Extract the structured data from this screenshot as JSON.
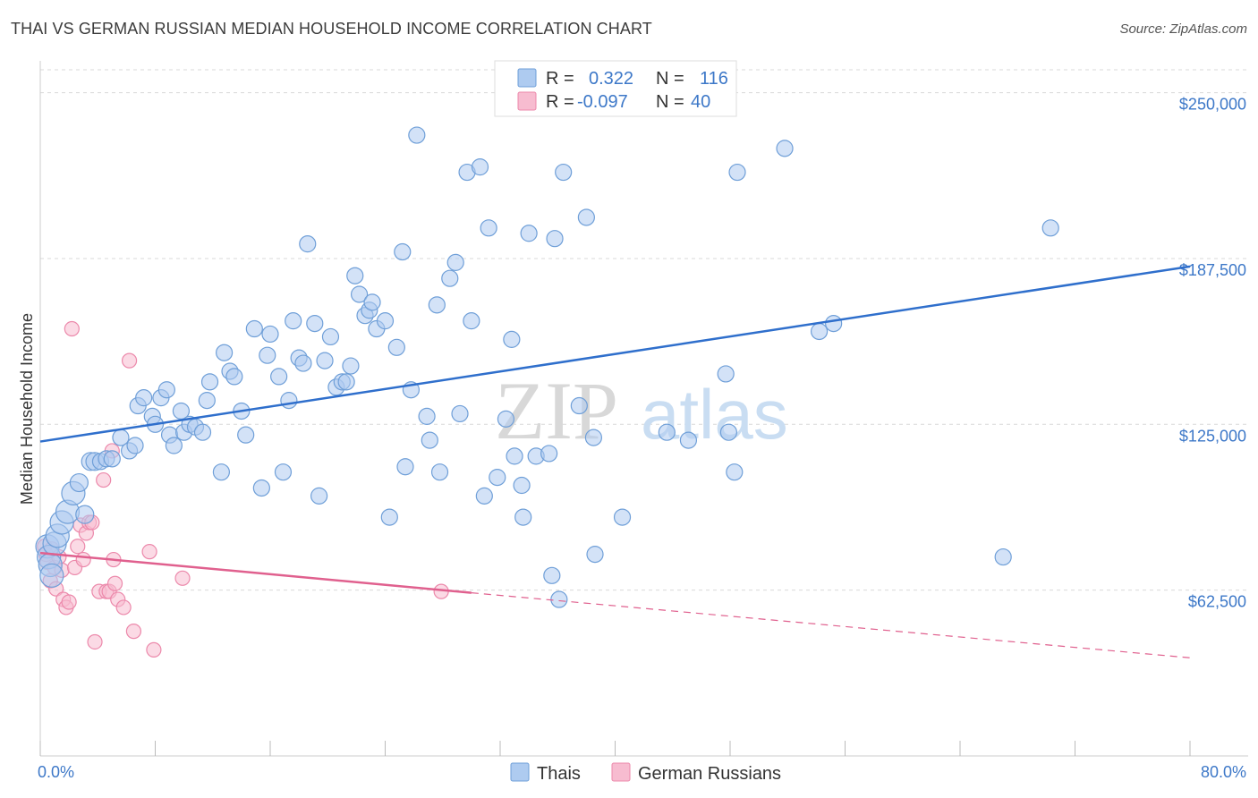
{
  "header": {
    "title": "THAI VS GERMAN RUSSIAN MEDIAN HOUSEHOLD INCOME CORRELATION CHART",
    "source": "Source: ZipAtlas.com"
  },
  "watermark": {
    "zip": "ZIP",
    "atlas": "atlas"
  },
  "legend": {
    "rows": [
      {
        "r_label": "R =",
        "r_value": "0.322",
        "n_label": "N =",
        "n_value": "116",
        "color": "#7fb0e8"
      },
      {
        "r_label": "R =",
        "r_value": "-0.097",
        "n_label": "N =",
        "n_value": "40",
        "color": "#f29bb9"
      }
    ]
  },
  "bottom_legend": {
    "items": [
      "Thais",
      "German Russians"
    ]
  },
  "colors": {
    "thai_fill": "#aecbf0",
    "thai_stroke": "#6f9fd8",
    "thai_line": "#2f6fcc",
    "gr_fill": "#f7bcd0",
    "gr_stroke": "#ec89ab",
    "gr_line": "#e0608e",
    "grid": "#d9d9d9",
    "axis_text": "#3d78c8"
  },
  "chart_data": {
    "type": "scatter",
    "title": "THAI VS GERMAN RUSSIAN MEDIAN HOUSEHOLD INCOME CORRELATION CHART",
    "xlabel": "",
    "ylabel": "Median Household Income",
    "xlim": [
      0,
      80
    ],
    "ylim": [
      0,
      262000
    ],
    "x_tick_labels": [
      "0.0%",
      "80.0%"
    ],
    "y_ticks": [
      62500,
      125000,
      187500,
      250000
    ],
    "y_tick_labels": [
      "$62,500",
      "$125,000",
      "$187,500",
      "$250,000"
    ],
    "grid": true,
    "legend_position": "top-center",
    "series": [
      {
        "name": "Thais",
        "points": [
          [
            0.5,
            79000
          ],
          [
            0.6,
            75000
          ],
          [
            0.7,
            72000
          ],
          [
            0.8,
            68000
          ],
          [
            1.0,
            80000
          ],
          [
            1.2,
            83000
          ],
          [
            1.5,
            88000
          ],
          [
            1.9,
            92000
          ],
          [
            2.3,
            99000
          ],
          [
            2.7,
            103000
          ],
          [
            3.1,
            91000
          ],
          [
            3.5,
            111000
          ],
          [
            3.8,
            111000
          ],
          [
            4.2,
            111000
          ],
          [
            4.6,
            112000
          ],
          [
            5.0,
            112000
          ],
          [
            5.6,
            120000
          ],
          [
            6.2,
            115000
          ],
          [
            6.6,
            117000
          ],
          [
            6.8,
            132000
          ],
          [
            7.2,
            135000
          ],
          [
            7.8,
            128000
          ],
          [
            8.0,
            125000
          ],
          [
            8.4,
            135000
          ],
          [
            8.8,
            138000
          ],
          [
            9.0,
            121000
          ],
          [
            9.3,
            117000
          ],
          [
            9.8,
            130000
          ],
          [
            10.0,
            122000
          ],
          [
            10.4,
            125000
          ],
          [
            10.8,
            124000
          ],
          [
            11.3,
            122000
          ],
          [
            11.6,
            134000
          ],
          [
            11.8,
            141000
          ],
          [
            12.6,
            107000
          ],
          [
            12.8,
            152000
          ],
          [
            13.2,
            145000
          ],
          [
            13.5,
            143000
          ],
          [
            14.0,
            130000
          ],
          [
            14.3,
            121000
          ],
          [
            14.9,
            161000
          ],
          [
            15.4,
            101000
          ],
          [
            15.8,
            151000
          ],
          [
            16.0,
            159000
          ],
          [
            16.6,
            143000
          ],
          [
            16.9,
            107000
          ],
          [
            17.3,
            134000
          ],
          [
            17.6,
            164000
          ],
          [
            18.0,
            150000
          ],
          [
            18.3,
            148000
          ],
          [
            18.6,
            193000
          ],
          [
            19.1,
            163000
          ],
          [
            19.4,
            98000
          ],
          [
            19.8,
            149000
          ],
          [
            20.2,
            158000
          ],
          [
            20.6,
            139000
          ],
          [
            21.0,
            141000
          ],
          [
            21.3,
            141000
          ],
          [
            21.6,
            147000
          ],
          [
            21.9,
            181000
          ],
          [
            22.2,
            174000
          ],
          [
            22.6,
            166000
          ],
          [
            22.9,
            168000
          ],
          [
            23.1,
            171000
          ],
          [
            23.4,
            161000
          ],
          [
            24.0,
            164000
          ],
          [
            24.3,
            90000
          ],
          [
            24.8,
            154000
          ],
          [
            25.2,
            190000
          ],
          [
            25.4,
            109000
          ],
          [
            25.8,
            138000
          ],
          [
            26.2,
            234000
          ],
          [
            26.9,
            128000
          ],
          [
            27.1,
            119000
          ],
          [
            27.6,
            170000
          ],
          [
            27.8,
            107000
          ],
          [
            28.5,
            180000
          ],
          [
            28.9,
            186000
          ],
          [
            29.2,
            129000
          ],
          [
            29.7,
            220000
          ],
          [
            30.0,
            164000
          ],
          [
            30.6,
            222000
          ],
          [
            30.9,
            98000
          ],
          [
            31.2,
            199000
          ],
          [
            31.8,
            105000
          ],
          [
            32.4,
            127000
          ],
          [
            32.8,
            157000
          ],
          [
            33.0,
            113000
          ],
          [
            33.5,
            102000
          ],
          [
            33.6,
            90000
          ],
          [
            34.0,
            197000
          ],
          [
            34.5,
            113000
          ],
          [
            35.4,
            114000
          ],
          [
            35.6,
            68000
          ],
          [
            35.8,
            195000
          ],
          [
            36.1,
            59000
          ],
          [
            36.4,
            220000
          ],
          [
            37.5,
            132000
          ],
          [
            38.0,
            203000
          ],
          [
            38.5,
            120000
          ],
          [
            38.6,
            76000
          ],
          [
            40.5,
            90000
          ],
          [
            43.6,
            122000
          ],
          [
            45.1,
            119000
          ],
          [
            47.7,
            144000
          ],
          [
            47.9,
            122000
          ],
          [
            48.3,
            107000
          ],
          [
            48.5,
            220000
          ],
          [
            51.8,
            229000
          ],
          [
            54.2,
            160000
          ],
          [
            55.2,
            163000
          ],
          [
            67.0,
            75000
          ],
          [
            70.3,
            199000
          ]
        ]
      },
      {
        "name": "German Russians",
        "points": [
          [
            0.3,
            79000
          ],
          [
            0.4,
            76000
          ],
          [
            0.5,
            73000
          ],
          [
            0.7,
            66000
          ],
          [
            0.8,
            78000
          ],
          [
            1.0,
            71000
          ],
          [
            1.1,
            63000
          ],
          [
            1.3,
            75000
          ],
          [
            1.5,
            70000
          ],
          [
            1.6,
            59000
          ],
          [
            1.8,
            56000
          ],
          [
            2.0,
            58000
          ],
          [
            2.2,
            161000
          ],
          [
            2.4,
            71000
          ],
          [
            2.6,
            79000
          ],
          [
            2.8,
            87000
          ],
          [
            3.0,
            74000
          ],
          [
            3.2,
            84000
          ],
          [
            3.4,
            88000
          ],
          [
            3.6,
            88000
          ],
          [
            3.8,
            43000
          ],
          [
            4.1,
            62000
          ],
          [
            4.4,
            104000
          ],
          [
            4.6,
            62000
          ],
          [
            4.8,
            62000
          ],
          [
            5.0,
            115000
          ],
          [
            5.1,
            74000
          ],
          [
            5.2,
            65000
          ],
          [
            5.4,
            59000
          ],
          [
            5.8,
            56000
          ],
          [
            6.2,
            149000
          ],
          [
            6.5,
            47000
          ],
          [
            7.6,
            77000
          ],
          [
            7.9,
            40000
          ],
          [
            9.9,
            67000
          ],
          [
            27.9,
            62000
          ]
        ]
      }
    ],
    "trend_lines": [
      {
        "series": "Thais",
        "x": [
          0,
          80
        ],
        "y": [
          118500,
          184500
        ],
        "style": "solid"
      },
      {
        "series": "German Russians",
        "x": [
          0,
          30
        ],
        "y": [
          76500,
          61500
        ],
        "style": "solid"
      },
      {
        "series": "German Russians",
        "x": [
          30,
          80
        ],
        "y": [
          61500,
          37000
        ],
        "style": "dashed"
      }
    ]
  }
}
